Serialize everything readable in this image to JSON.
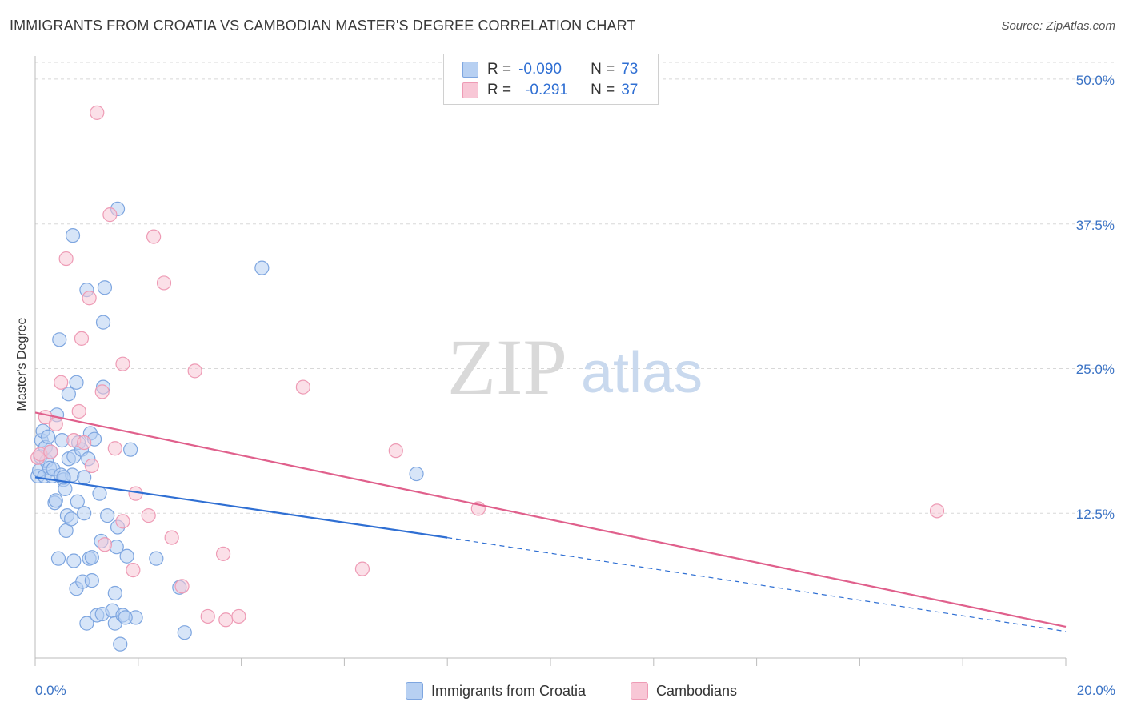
{
  "title": "IMMIGRANTS FROM CROATIA VS CAMBODIAN MASTER'S DEGREE CORRELATION CHART",
  "source": "Source: ZipAtlas.com",
  "watermark": {
    "zip": "ZIP",
    "atlas": "atlas"
  },
  "legend": {
    "blue": {
      "r_label": "R =",
      "r_value": "-0.090",
      "n_label": "N =",
      "n_value": "73"
    },
    "pink": {
      "r_label": "R =",
      "r_value": "-0.291",
      "n_label": "N =",
      "n_value": "37"
    }
  },
  "bottom_legend": {
    "blue": "Immigrants from Croatia",
    "pink": "Cambodians"
  },
  "colors": {
    "blue_fill": "#b7d0f2",
    "blue_stroke": "#7ea6e0",
    "blue_line": "#2f6fd3",
    "pink_fill": "#f8c7d6",
    "pink_stroke": "#ee9bb5",
    "pink_line": "#e0608c",
    "axis_text": "#3b73c5",
    "grid": "#d8d8d8"
  },
  "chart_data": {
    "type": "scatter",
    "title": "IMMIGRANTS FROM CROATIA VS CAMBODIAN MASTER'S DEGREE CORRELATION CHART",
    "xlabel": "",
    "ylabel": "Master's Degree",
    "xlim": [
      0,
      20
    ],
    "ylim": [
      0,
      52
    ],
    "x_tick_labels": [
      {
        "value": 0,
        "label": "0.0%"
      },
      {
        "value": 20,
        "label": "20.0%"
      }
    ],
    "y_tick_labels": [
      {
        "value": 12.5,
        "label": "12.5%"
      },
      {
        "value": 25,
        "label": "25.0%"
      },
      {
        "value": 37.5,
        "label": "37.5%"
      },
      {
        "value": 50,
        "label": "50.0%"
      }
    ],
    "series": [
      {
        "name": "Immigrants from Croatia",
        "color": "blue",
        "R": -0.09,
        "N": 73,
        "trend": {
          "x0": 0,
          "y0": 15.6,
          "x1": 8.0,
          "y1": 10.4,
          "dashed_to_x": 20,
          "dashed_to_y": 2.3
        },
        "points": [
          [
            0.05,
            15.7
          ],
          [
            0.08,
            16.2
          ],
          [
            0.1,
            17.4
          ],
          [
            0.12,
            18.8
          ],
          [
            0.15,
            19.6
          ],
          [
            0.18,
            15.7
          ],
          [
            0.2,
            18.2
          ],
          [
            0.22,
            17.0
          ],
          [
            0.25,
            19.1
          ],
          [
            0.28,
            16.4
          ],
          [
            0.3,
            17.8
          ],
          [
            0.33,
            15.7
          ],
          [
            0.35,
            16.3
          ],
          [
            0.38,
            13.4
          ],
          [
            0.4,
            13.6
          ],
          [
            0.42,
            21.0
          ],
          [
            0.45,
            8.6
          ],
          [
            0.47,
            27.5
          ],
          [
            0.5,
            15.8
          ],
          [
            0.52,
            18.8
          ],
          [
            0.55,
            15.4
          ],
          [
            0.58,
            14.6
          ],
          [
            0.6,
            11.0
          ],
          [
            0.62,
            12.3
          ],
          [
            0.65,
            22.8
          ],
          [
            0.65,
            17.2
          ],
          [
            0.7,
            12.0
          ],
          [
            0.72,
            15.8
          ],
          [
            0.73,
            36.5
          ],
          [
            0.75,
            17.4
          ],
          [
            0.75,
            8.4
          ],
          [
            0.8,
            23.8
          ],
          [
            0.8,
            6.0
          ],
          [
            0.82,
            13.5
          ],
          [
            0.84,
            18.6
          ],
          [
            0.9,
            18.0
          ],
          [
            0.92,
            6.6
          ],
          [
            0.95,
            12.5
          ],
          [
            1.0,
            31.8
          ],
          [
            1.0,
            3.0
          ],
          [
            1.03,
            17.2
          ],
          [
            1.05,
            8.6
          ],
          [
            1.07,
            19.4
          ],
          [
            1.1,
            6.7
          ],
          [
            1.1,
            8.7
          ],
          [
            1.15,
            18.9
          ],
          [
            1.2,
            3.7
          ],
          [
            1.25,
            14.2
          ],
          [
            1.28,
            10.1
          ],
          [
            1.3,
            3.8
          ],
          [
            1.32,
            23.4
          ],
          [
            1.32,
            29.0
          ],
          [
            1.35,
            32.0
          ],
          [
            1.4,
            12.3
          ],
          [
            1.5,
            4.1
          ],
          [
            1.55,
            3.0
          ],
          [
            1.55,
            5.6
          ],
          [
            1.58,
            9.6
          ],
          [
            1.6,
            11.3
          ],
          [
            1.65,
            1.2
          ],
          [
            1.7,
            3.7
          ],
          [
            1.78,
            8.8
          ],
          [
            1.85,
            18.0
          ],
          [
            1.95,
            3.5
          ],
          [
            2.35,
            8.6
          ],
          [
            2.8,
            6.1
          ],
          [
            2.9,
            2.2
          ],
          [
            4.4,
            33.7
          ],
          [
            7.4,
            15.9
          ],
          [
            1.6,
            38.8
          ],
          [
            0.55,
            15.6
          ],
          [
            0.95,
            15.6
          ],
          [
            1.75,
            3.5
          ]
        ]
      },
      {
        "name": "Cambodians",
        "color": "pink",
        "R": -0.291,
        "N": 37,
        "trend": {
          "x0": 0,
          "y0": 21.2,
          "x1": 20,
          "y1": 2.7
        },
        "points": [
          [
            0.05,
            17.3
          ],
          [
            0.1,
            17.6
          ],
          [
            0.2,
            20.8
          ],
          [
            0.3,
            17.8
          ],
          [
            0.4,
            20.2
          ],
          [
            0.5,
            23.8
          ],
          [
            0.6,
            34.5
          ],
          [
            0.75,
            18.8
          ],
          [
            0.85,
            21.3
          ],
          [
            0.9,
            27.6
          ],
          [
            0.95,
            18.6
          ],
          [
            1.05,
            31.1
          ],
          [
            1.1,
            16.6
          ],
          [
            1.2,
            47.1
          ],
          [
            1.3,
            23.0
          ],
          [
            1.35,
            9.8
          ],
          [
            1.45,
            38.3
          ],
          [
            1.55,
            18.1
          ],
          [
            1.7,
            11.8
          ],
          [
            1.7,
            25.4
          ],
          [
            1.9,
            7.6
          ],
          [
            1.95,
            14.2
          ],
          [
            2.2,
            12.3
          ],
          [
            2.3,
            36.4
          ],
          [
            2.5,
            32.4
          ],
          [
            2.65,
            10.4
          ],
          [
            2.85,
            6.2
          ],
          [
            3.1,
            24.8
          ],
          [
            3.35,
            3.6
          ],
          [
            3.65,
            9.0
          ],
          [
            3.7,
            3.3
          ],
          [
            3.95,
            3.6
          ],
          [
            5.2,
            23.4
          ],
          [
            6.35,
            7.7
          ],
          [
            7.0,
            17.9
          ],
          [
            8.6,
            12.9
          ],
          [
            17.5,
            12.7
          ]
        ]
      }
    ]
  }
}
